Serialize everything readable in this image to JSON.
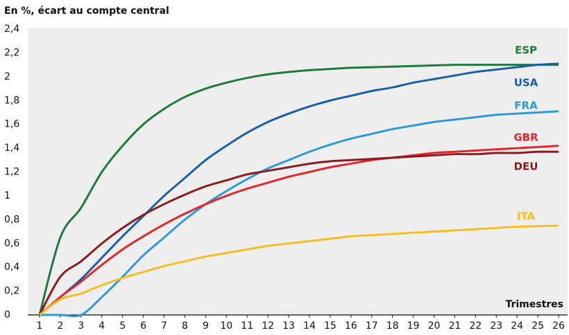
{
  "chart_data": {
    "type": "line",
    "title": "En %, écart au compte central",
    "x_label": "Trimestres",
    "x": [
      1,
      2,
      3,
      4,
      5,
      6,
      7,
      8,
      9,
      10,
      11,
      12,
      13,
      14,
      15,
      16,
      17,
      18,
      19,
      20,
      21,
      22,
      23,
      24,
      25,
      26
    ],
    "xlim": [
      1,
      26
    ],
    "xticks": [
      1,
      2,
      3,
      4,
      5,
      6,
      7,
      8,
      9,
      10,
      11,
      12,
      13,
      14,
      15,
      16,
      17,
      18,
      19,
      20,
      21,
      22,
      23,
      24,
      25,
      26
    ],
    "ylim": [
      0,
      2.4
    ],
    "yticks": [
      0,
      {
        "value": 0.2,
        "label": "0,2"
      },
      {
        "value": 0.4,
        "label": "0,4"
      },
      {
        "value": 0.6,
        "label": "0,6"
      },
      {
        "value": 0.8,
        "label": "0,8"
      },
      1,
      {
        "value": 1.2,
        "label": "1,2"
      },
      {
        "value": 1.4,
        "label": "1,4"
      },
      {
        "value": 1.6,
        "label": "1,6"
      },
      {
        "value": 1.8,
        "label": "1,8"
      },
      2,
      {
        "value": 2.2,
        "label": "2,2"
      },
      {
        "value": 2.4,
        "label": "2,4"
      }
    ],
    "grid": false,
    "series": [
      {
        "name": "ESP",
        "color": "#1b7a3c",
        "values": [
          0,
          0.65,
          0.9,
          1.2,
          1.42,
          1.6,
          1.73,
          1.83,
          1.9,
          1.95,
          1.99,
          2.02,
          2.04,
          2.055,
          2.065,
          2.075,
          2.08,
          2.085,
          2.09,
          2.095,
          2.1,
          2.1,
          2.1,
          2.1,
          2.1,
          2.1
        ]
      },
      {
        "name": "USA",
        "color": "#1a5ea8",
        "values": [
          0,
          0.15,
          0.3,
          0.48,
          0.66,
          0.83,
          1.0,
          1.15,
          1.3,
          1.42,
          1.53,
          1.62,
          1.69,
          1.75,
          1.8,
          1.84,
          1.88,
          1.91,
          1.95,
          1.98,
          2.01,
          2.04,
          2.06,
          2.08,
          2.1,
          2.11
        ]
      },
      {
        "name": "FRA",
        "color": "#2b9bd8",
        "values": [
          0,
          0,
          0,
          0.15,
          0.32,
          0.5,
          0.65,
          0.8,
          0.93,
          1.04,
          1.14,
          1.23,
          1.3,
          1.37,
          1.43,
          1.48,
          1.52,
          1.56,
          1.59,
          1.62,
          1.64,
          1.66,
          1.68,
          1.69,
          1.7,
          1.71
        ]
      },
      {
        "name": "GBR",
        "color": "#e3262b",
        "values": [
          0,
          0.15,
          0.28,
          0.42,
          0.55,
          0.66,
          0.76,
          0.85,
          0.93,
          1.0,
          1.06,
          1.11,
          1.16,
          1.2,
          1.24,
          1.27,
          1.3,
          1.32,
          1.34,
          1.36,
          1.37,
          1.38,
          1.39,
          1.4,
          1.41,
          1.42
        ]
      },
      {
        "name": "DEU",
        "color": "#8c1b20",
        "values": [
          0,
          0.32,
          0.45,
          0.6,
          0.73,
          0.84,
          0.93,
          1.01,
          1.08,
          1.13,
          1.18,
          1.21,
          1.24,
          1.27,
          1.29,
          1.3,
          1.31,
          1.32,
          1.33,
          1.34,
          1.35,
          1.35,
          1.36,
          1.36,
          1.37,
          1.37
        ]
      },
      {
        "name": "ITA",
        "color": "#f6bd1f",
        "values": [
          0,
          0.13,
          0.18,
          0.25,
          0.31,
          0.36,
          0.41,
          0.45,
          0.49,
          0.52,
          0.55,
          0.58,
          0.6,
          0.62,
          0.64,
          0.66,
          0.67,
          0.68,
          0.69,
          0.7,
          0.71,
          0.72,
          0.73,
          0.74,
          0.745,
          0.75
        ]
      }
    ]
  }
}
